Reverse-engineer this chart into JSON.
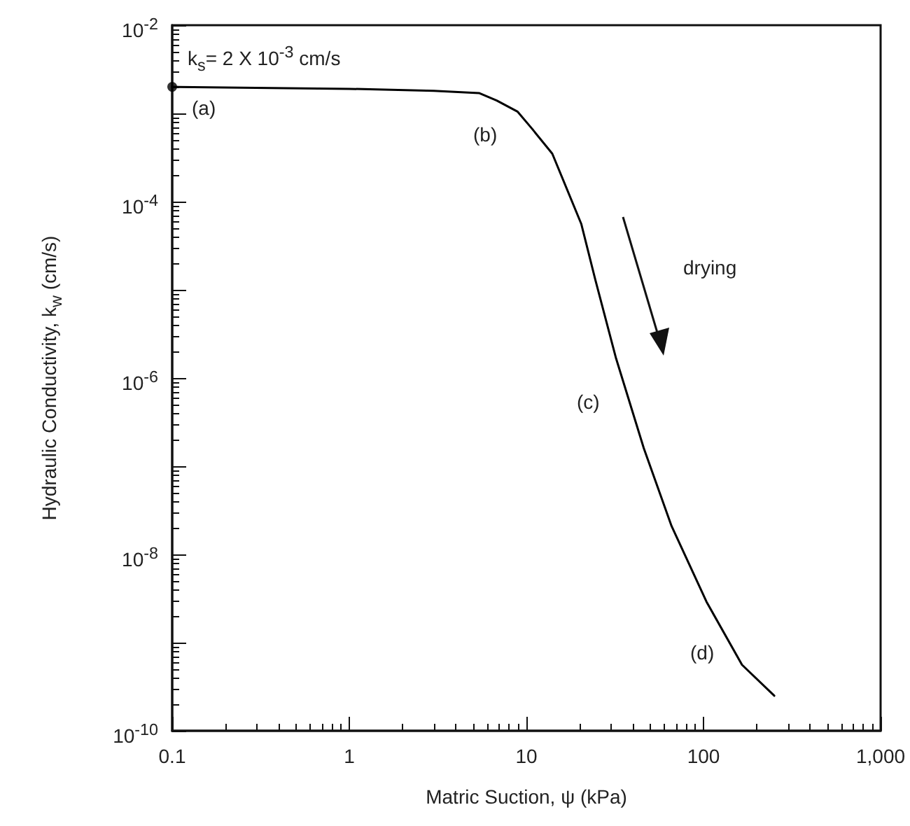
{
  "chart_data": {
    "type": "line",
    "xlabel": "Matric Suction, ψ (kPa)",
    "ylabel": "Hydraulic Conductivity, k$_{w}$ (cm/s)",
    "log": "xy",
    "grid": false,
    "marker": "none",
    "line_style": "solid",
    "xlim": [
      0.1,
      1000
    ],
    "xticks": [
      0.1,
      1,
      10,
      100,
      {
        "value": 1000,
        "label": "1,000"
      }
    ],
    "ylim": [
      1e-10,
      0.01
    ],
    "yticks": [
      {
        "value": 1e-10,
        "label": "10$^{-10}$"
      },
      {
        "value": 1e-09,
        "label": null
      },
      {
        "value": 1e-08,
        "label": "10$^{-8}$"
      },
      {
        "value": 1e-07,
        "label": null
      },
      {
        "value": 1e-06,
        "label": "10$^{-6}$"
      },
      {
        "value": 1e-05,
        "label": null
      },
      {
        "value": 0.0001,
        "label": "10$^{-4}$"
      },
      {
        "value": 0.001,
        "label": null
      },
      {
        "value": 0.01,
        "label": "10$^{-2}$"
      }
    ],
    "series": [
      {
        "color": "#000000",
        "x": [
          0.1,
          1,
          3,
          5.4,
          6.8,
          8.9,
          10.7,
          14,
          20.4,
          24.5,
          32,
          46,
          66,
          104,
          165,
          251
        ],
        "values": [
          0.002,
          0.0019,
          0.0018,
          0.0017,
          0.0014,
          0.00105,
          0.00068,
          0.00035,
          5.6e-05,
          1.3e-05,
          1.7e-06,
          1.6e-07,
          2.1e-08,
          2.9e-09,
          5.6e-10,
          2.5e-10
        ]
      },
      {
        "type": "scatter",
        "marker": "circle",
        "color": "#000000",
        "x": [
          0.1
        ],
        "values": [
          0.002
        ]
      }
    ],
    "annotations": [
      "k$_{s}$= 2 X 10$^{-3}$ cm/s",
      "(a)",
      "(b)",
      "(c)",
      "(d)",
      "drying"
    ]
  }
}
